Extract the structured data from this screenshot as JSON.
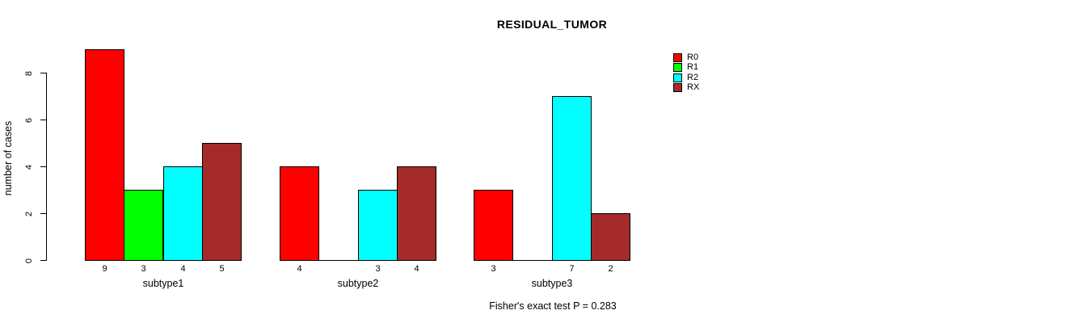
{
  "chart_data": {
    "type": "bar",
    "title": "RESIDUAL_TUMOR",
    "ylabel": "number of cases",
    "xlabel": "",
    "categories": [
      "subtype1",
      "subtype2",
      "subtype3"
    ],
    "series": [
      {
        "name": "R0",
        "color": "#FF0000",
        "values": [
          9,
          4,
          3
        ]
      },
      {
        "name": "R1",
        "color": "#00FF00",
        "values": [
          3,
          0,
          0
        ]
      },
      {
        "name": "R2",
        "color": "#00FFFF",
        "values": [
          4,
          3,
          7
        ]
      },
      {
        "name": "RX",
        "color": "#A52A2A",
        "values": [
          5,
          4,
          2
        ]
      }
    ],
    "ylim": [
      0,
      8
    ],
    "yticks": [
      0,
      2,
      4,
      6,
      8
    ],
    "bar_value_labels_shown": true,
    "zero_bars_unlabeled": true,
    "legend_position": "right",
    "grid": "off",
    "note": "Fisher's exact test P = 0.283",
    "colors": {
      "background": "#FFFFFF",
      "axis": "#000000",
      "text": "#000000"
    }
  }
}
